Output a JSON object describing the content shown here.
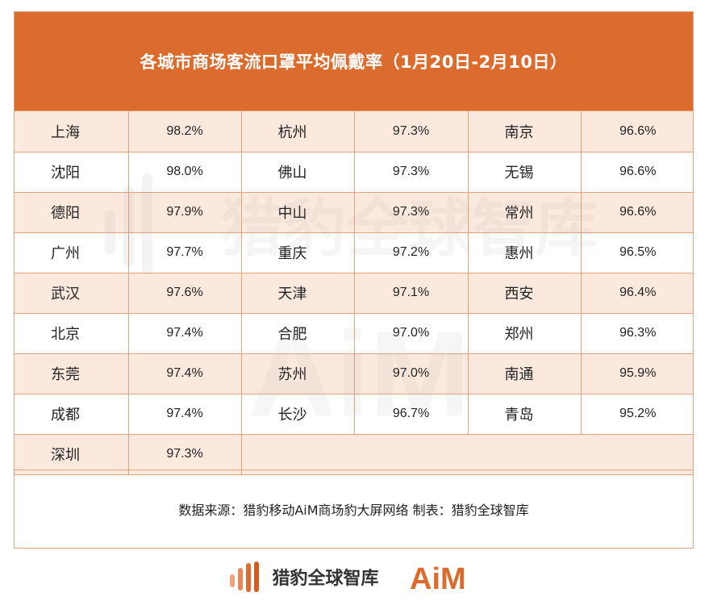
{
  "header": {
    "title": "各城市商场客流口罩平均佩戴率（1月20日-2月10日）"
  },
  "table": {
    "rows": [
      [
        {
          "city": "上海",
          "value": "98.2%"
        },
        {
          "city": "杭州",
          "value": "97.3%"
        },
        {
          "city": "南京",
          "value": "96.6%"
        }
      ],
      [
        {
          "city": "沈阳",
          "value": "98.0%"
        },
        {
          "city": "佛山",
          "value": "97.3%"
        },
        {
          "city": "无锡",
          "value": "96.6%"
        }
      ],
      [
        {
          "city": "德阳",
          "value": "97.9%"
        },
        {
          "city": "中山",
          "value": "97.3%"
        },
        {
          "city": "常州",
          "value": "96.6%"
        }
      ],
      [
        {
          "city": "广州",
          "value": "97.7%"
        },
        {
          "city": "重庆",
          "value": "97.2%"
        },
        {
          "city": "惠州",
          "value": "96.5%"
        }
      ],
      [
        {
          "city": "武汉",
          "value": "97.6%"
        },
        {
          "city": "天津",
          "value": "97.1%"
        },
        {
          "city": "西安",
          "value": "96.4%"
        }
      ],
      [
        {
          "city": "北京",
          "value": "97.4%"
        },
        {
          "city": "合肥",
          "value": "97.0%"
        },
        {
          "city": "郑州",
          "value": "96.3%"
        }
      ],
      [
        {
          "city": "东莞",
          "value": "97.4%"
        },
        {
          "city": "苏州",
          "value": "97.0%"
        },
        {
          "city": "南通",
          "value": "95.9%"
        }
      ],
      [
        {
          "city": "成都",
          "value": "97.4%"
        },
        {
          "city": "长沙",
          "value": "96.7%"
        },
        {
          "city": "青岛",
          "value": "95.2%"
        }
      ],
      [
        {
          "city": "深圳",
          "value": "97.3%"
        }
      ]
    ]
  },
  "source": {
    "text": "数据来源：猎豹移动AiM商场豹大屏网络  制表：猎豹全球智库"
  },
  "watermark": {
    "brand": "猎豹全球智库",
    "logo": "AiM"
  },
  "footer": {
    "brand": "猎豹全球智库",
    "logo": "AiM"
  },
  "colors": {
    "accent": "#db6c2e",
    "row_alt": "#fbe9dd",
    "border": "#e2a27c",
    "logo_dark": "#333333"
  },
  "icons": {
    "footer_mark": "cheetah-bars-icon"
  }
}
